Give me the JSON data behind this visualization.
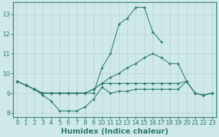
{
  "xlabel": "Humidex (Indice chaleur)",
  "background_color": "#cfe8e8",
  "grid_color": "#b8d4d4",
  "line_color": "#2a7a6a",
  "xlim": [
    -0.5,
    23.5
  ],
  "ylim": [
    7.8,
    13.6
  ],
  "yticks": [
    8,
    9,
    10,
    11,
    12,
    13
  ],
  "xticks": [
    0,
    1,
    2,
    3,
    4,
    5,
    6,
    7,
    8,
    9,
    10,
    11,
    12,
    13,
    14,
    15,
    16,
    17,
    18,
    19,
    20,
    21,
    22,
    23
  ],
  "lines": [
    {
      "x": [
        0,
        1,
        2,
        3,
        4,
        5,
        6,
        7,
        8,
        9,
        10,
        11,
        12,
        13,
        14,
        15,
        16,
        17,
        18,
        19,
        20,
        21,
        22,
        23
      ],
      "y": [
        9.6,
        9.4,
        9.2,
        8.9,
        8.6,
        8.1,
        8.1,
        8.1,
        8.3,
        8.7,
        9.3,
        9.0,
        9.1,
        9.1,
        9.2,
        9.2,
        9.2,
        9.2,
        9.2,
        9.2,
        9.6,
        9.0,
        8.9,
        9.0
      ]
    },
    {
      "x": [
        0,
        1,
        2,
        3,
        4,
        5,
        6,
        7,
        8,
        9,
        10,
        11,
        12,
        13,
        14,
        15,
        16,
        17,
        18,
        19,
        20,
        21,
        22,
        23
      ],
      "y": [
        9.6,
        9.4,
        9.2,
        9.0,
        9.0,
        9.0,
        9.0,
        9.0,
        9.0,
        9.0,
        10.3,
        11.0,
        12.5,
        12.8,
        13.35,
        13.35,
        12.1,
        11.6,
        null,
        null,
        null,
        null,
        null,
        null
      ]
    },
    {
      "x": [
        0,
        1,
        2,
        3,
        4,
        5,
        6,
        7,
        8,
        9,
        10,
        11,
        12,
        13,
        14,
        15,
        16,
        17,
        18,
        19,
        20,
        21,
        22,
        23
      ],
      "y": [
        9.6,
        9.4,
        9.2,
        9.0,
        9.0,
        9.0,
        9.0,
        9.0,
        9.0,
        9.2,
        9.5,
        9.8,
        10.0,
        10.3,
        10.5,
        10.8,
        11.0,
        10.8,
        10.5,
        10.5,
        9.6,
        9.0,
        8.9,
        9.0
      ]
    },
    {
      "x": [
        0,
        1,
        2,
        3,
        4,
        5,
        6,
        7,
        8,
        9,
        10,
        11,
        12,
        13,
        14,
        15,
        16,
        17,
        18,
        19,
        20,
        21,
        22,
        23
      ],
      "y": [
        9.6,
        9.4,
        9.2,
        9.0,
        9.0,
        9.0,
        9.0,
        9.0,
        9.0,
        9.2,
        9.5,
        9.5,
        9.5,
        9.5,
        9.5,
        9.5,
        9.5,
        9.5,
        9.5,
        9.5,
        9.6,
        9.0,
        8.9,
        9.0
      ]
    }
  ],
  "font_color": "#2a7a6a",
  "tick_fontsize": 6.5,
  "label_fontsize": 8
}
